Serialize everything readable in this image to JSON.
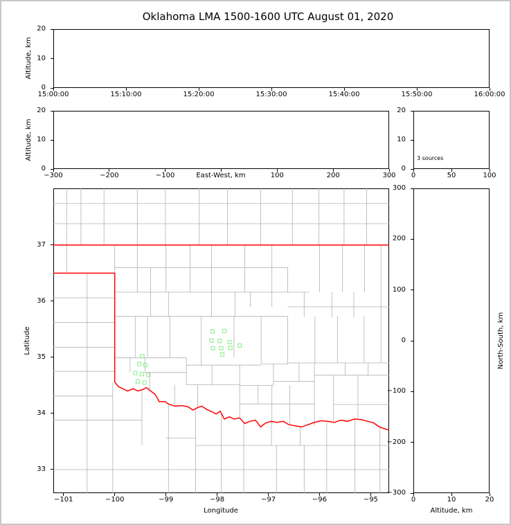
{
  "title": "Oklahoma LMA 1500-1600 UTC August 01, 2020",
  "colors": {
    "axis": "#000000",
    "county_lines": "#b0b0b0",
    "state_border": "#ff0000",
    "station_marker": "#90ee90",
    "background": "#ffffff",
    "frame": "#c8c8c8"
  },
  "panels": {
    "time_height": {
      "ylabel": "Altitude, km"
    },
    "ew_height": {
      "ylabel": "Altitude, km",
      "xlabel": "East-West, km"
    },
    "histogram": {
      "annotation": "3 sources"
    },
    "map": {
      "ylabel": "Latitude",
      "xlabel": "Longitude"
    },
    "ns_height": {
      "ylabel": "North-South, km",
      "xlabel": "Altitude, km"
    }
  },
  "chart_data": [
    {
      "id": "time_height",
      "type": "scatter",
      "ylabel": "Altitude, km",
      "xticks": [
        "15:00:00",
        "15:10:00",
        "15:20:00",
        "15:30:00",
        "15:40:00",
        "15:50:00",
        "16:00:00"
      ],
      "ylim": [
        0,
        20
      ],
      "yticks": [
        0,
        10,
        20
      ],
      "points": []
    },
    {
      "id": "ew_height",
      "type": "scatter",
      "xlabel": "East-West, km",
      "ylabel": "Altitude, km",
      "xlim": [
        -300,
        300
      ],
      "xticks": [
        -300,
        -200,
        -100,
        0,
        100,
        200,
        300
      ],
      "xtick_labels": [
        "−300",
        "−200",
        "−100",
        "",
        "100",
        "200",
        "300"
      ],
      "ylim": [
        0,
        20
      ],
      "yticks": [
        0,
        10,
        20
      ],
      "points": []
    },
    {
      "id": "alt_hist",
      "type": "bar",
      "xlim": [
        0,
        100
      ],
      "xticks": [
        0,
        50,
        100
      ],
      "ylim": [
        0,
        20
      ],
      "yticks": [
        0,
        10,
        20
      ],
      "annotation": "3 sources",
      "values": []
    },
    {
      "id": "plan_view",
      "type": "scatter",
      "xlabel": "Longitude",
      "ylabel": "Latitude",
      "xlim": [
        -101.2,
        -94.64
      ],
      "ylim": [
        32.58,
        38.01
      ],
      "xticks": [
        -101,
        -100,
        -99,
        -98,
        -97,
        -96,
        -95
      ],
      "yticks": [
        33,
        34,
        35,
        36,
        37
      ],
      "stations": [
        [
          -99.46,
          35.02
        ],
        [
          -99.52,
          34.88
        ],
        [
          -99.4,
          34.86
        ],
        [
          -99.6,
          34.72
        ],
        [
          -99.47,
          34.7
        ],
        [
          -99.34,
          34.69
        ],
        [
          -99.55,
          34.57
        ],
        [
          -99.42,
          34.55
        ],
        [
          -98.09,
          35.46
        ],
        [
          -97.86,
          35.47
        ],
        [
          -98.11,
          35.3
        ],
        [
          -97.95,
          35.29
        ],
        [
          -97.76,
          35.27
        ],
        [
          -98.08,
          35.16
        ],
        [
          -97.92,
          35.16
        ],
        [
          -97.74,
          35.17
        ],
        [
          -97.56,
          35.21
        ],
        [
          -97.9,
          35.05
        ]
      ],
      "state_border": [
        [
          [
            -101.2,
            37.0
          ],
          [
            -94.64,
            37.0
          ]
        ],
        [
          [
            -101.2,
            36.5
          ],
          [
            -100.0,
            36.5
          ],
          [
            -100.0,
            34.56
          ],
          [
            -99.93,
            34.48
          ],
          [
            -99.84,
            34.44
          ],
          [
            -99.75,
            34.4
          ],
          [
            -99.64,
            34.44
          ],
          [
            -99.55,
            34.4
          ],
          [
            -99.47,
            34.42
          ],
          [
            -99.38,
            34.46
          ],
          [
            -99.3,
            34.4
          ],
          [
            -99.21,
            34.34
          ],
          [
            -99.13,
            34.21
          ],
          [
            -99.02,
            34.21
          ],
          [
            -98.95,
            34.17
          ],
          [
            -98.83,
            34.13
          ],
          [
            -98.69,
            34.14
          ],
          [
            -98.57,
            34.12
          ],
          [
            -98.47,
            34.06
          ],
          [
            -98.39,
            34.1
          ],
          [
            -98.3,
            34.13
          ],
          [
            -98.2,
            34.07
          ],
          [
            -98.1,
            34.03
          ],
          [
            -98.02,
            33.99
          ],
          [
            -97.94,
            34.04
          ],
          [
            -97.86,
            33.9
          ],
          [
            -97.76,
            33.94
          ],
          [
            -97.67,
            33.9
          ],
          [
            -97.56,
            33.92
          ],
          [
            -97.46,
            33.82
          ],
          [
            -97.36,
            33.86
          ],
          [
            -97.25,
            33.88
          ],
          [
            -97.15,
            33.76
          ],
          [
            -97.05,
            33.83
          ],
          [
            -96.94,
            33.86
          ],
          [
            -96.83,
            33.84
          ],
          [
            -96.71,
            33.86
          ],
          [
            -96.6,
            33.8
          ],
          [
            -96.48,
            33.78
          ],
          [
            -96.35,
            33.76
          ],
          [
            -96.22,
            33.8
          ],
          [
            -96.1,
            33.84
          ],
          [
            -95.97,
            33.87
          ],
          [
            -95.84,
            33.86
          ],
          [
            -95.71,
            33.84
          ],
          [
            -95.58,
            33.88
          ],
          [
            -95.45,
            33.86
          ],
          [
            -95.32,
            33.9
          ],
          [
            -95.19,
            33.89
          ],
          [
            -95.06,
            33.86
          ],
          [
            -94.94,
            33.83
          ],
          [
            -94.83,
            33.76
          ],
          [
            -94.64,
            33.7
          ]
        ]
      ],
      "county_lines": [
        [
          -101.2,
          37.38,
          -94.64,
          37.38
        ],
        [
          -101.2,
          37.74,
          -94.64,
          37.74
        ],
        [
          -100.94,
          37.0,
          -100.94,
          38.01
        ],
        [
          -100.66,
          37.0,
          -100.66,
          38.01
        ],
        [
          -100.21,
          37.0,
          -100.21,
          38.01
        ],
        [
          -99.56,
          37.0,
          -99.56,
          38.01
        ],
        [
          -99.01,
          37.0,
          -99.01,
          38.01
        ],
        [
          -98.35,
          37.0,
          -98.35,
          38.01
        ],
        [
          -97.8,
          37.0,
          -97.8,
          38.01
        ],
        [
          -97.15,
          37.0,
          -97.15,
          38.01
        ],
        [
          -96.53,
          37.0,
          -96.53,
          38.01
        ],
        [
          -96.01,
          37.0,
          -96.01,
          38.01
        ],
        [
          -95.52,
          37.0,
          -95.52,
          38.01
        ],
        [
          -95.08,
          37.0,
          -95.08,
          38.01
        ],
        [
          -100.54,
          36.5,
          -100.54,
          32.58
        ],
        [
          -101.2,
          36.06,
          -100.0,
          36.06
        ],
        [
          -101.2,
          35.62,
          -100.0,
          35.62
        ],
        [
          -101.2,
          35.18,
          -100.0,
          35.18
        ],
        [
          -101.2,
          34.75,
          -100.0,
          34.75
        ],
        [
          -101.2,
          34.31,
          -100.04,
          34.31
        ],
        [
          -101.2,
          33.88,
          -99.47,
          33.88
        ],
        [
          -100.04,
          34.56,
          -100.04,
          32.58
        ],
        [
          -101.2,
          33.0,
          -94.64,
          33.0
        ],
        [
          -99.47,
          34.4,
          -99.47,
          33.44
        ],
        [
          -98.95,
          34.18,
          -98.95,
          32.58
        ],
        [
          -98.42,
          34.07,
          -98.42,
          32.58
        ],
        [
          -97.92,
          34.0,
          -97.92,
          32.58
        ],
        [
          -97.48,
          33.84,
          -97.48,
          32.58
        ],
        [
          -96.94,
          33.85,
          -96.94,
          33.43
        ],
        [
          -96.84,
          33.43,
          -96.84,
          32.58
        ],
        [
          -96.38,
          33.77,
          -96.38,
          33.43
        ],
        [
          -96.3,
          33.43,
          -96.3,
          32.58
        ],
        [
          -95.86,
          33.86,
          -95.86,
          32.58
        ],
        [
          -95.31,
          33.89,
          -95.31,
          32.58
        ],
        [
          -94.82,
          33.75,
          -94.82,
          32.58
        ],
        [
          -99.0,
          33.56,
          -98.42,
          33.56
        ],
        [
          -98.42,
          33.43,
          -94.64,
          33.43
        ],
        [
          -100.94,
          36.5,
          -100.94,
          37.0
        ],
        [
          -100.0,
          36.5,
          -100.0,
          37.0
        ],
        [
          -100.0,
          36.6,
          -96.62,
          36.6
        ],
        [
          -100.0,
          36.16,
          -96.2,
          36.16
        ],
        [
          -99.56,
          36.16,
          -99.56,
          37.0
        ],
        [
          -99.0,
          36.16,
          -99.0,
          37.0
        ],
        [
          -98.53,
          36.16,
          -98.53,
          37.0
        ],
        [
          -98.11,
          35.72,
          -98.11,
          37.0
        ],
        [
          -97.46,
          36.16,
          -97.46,
          37.0
        ],
        [
          -96.93,
          35.9,
          -96.93,
          37.0
        ],
        [
          -96.62,
          36.16,
          -96.62,
          36.6
        ],
        [
          -96.0,
          36.16,
          -96.0,
          37.0
        ],
        [
          -95.55,
          36.16,
          -95.55,
          37.0
        ],
        [
          -95.12,
          36.16,
          -95.12,
          37.0
        ],
        [
          -94.8,
          34.9,
          -94.8,
          37.0
        ],
        [
          -99.3,
          35.72,
          -99.3,
          36.6
        ],
        [
          -98.95,
          35.72,
          -98.95,
          36.16
        ],
        [
          -97.65,
          35.72,
          -97.65,
          36.16
        ],
        [
          -97.35,
          35.9,
          -97.35,
          36.16
        ],
        [
          -96.3,
          35.72,
          -96.3,
          36.16
        ],
        [
          -95.76,
          35.72,
          -95.76,
          36.16
        ],
        [
          -95.33,
          35.72,
          -95.33,
          36.16
        ],
        [
          -100.0,
          35.73,
          -96.62,
          35.73
        ],
        [
          -96.62,
          35.9,
          -94.64,
          35.9
        ],
        [
          -99.6,
          35.0,
          -99.6,
          35.73
        ],
        [
          -99.36,
          35.0,
          -99.36,
          35.73
        ],
        [
          -98.92,
          35.0,
          -98.92,
          35.73
        ],
        [
          -98.31,
          34.86,
          -98.31,
          35.73
        ],
        [
          -97.67,
          35.0,
          -97.67,
          35.73
        ],
        [
          -97.14,
          34.88,
          -97.14,
          35.73
        ],
        [
          -96.62,
          34.88,
          -96.62,
          35.73
        ],
        [
          -96.09,
          34.9,
          -96.09,
          35.73
        ],
        [
          -95.65,
          34.9,
          -95.65,
          35.73
        ],
        [
          -95.13,
          34.9,
          -95.13,
          35.73
        ],
        [
          -100.0,
          34.99,
          -98.6,
          34.99
        ],
        [
          -98.6,
          34.86,
          -97.14,
          34.86
        ],
        [
          -97.14,
          34.88,
          -96.62,
          34.88
        ],
        [
          -96.62,
          34.9,
          -94.64,
          34.9
        ],
        [
          -99.41,
          34.73,
          -99.41,
          35.0
        ],
        [
          -99.7,
          34.73,
          -99.7,
          35.0
        ],
        [
          -99.41,
          34.73,
          -98.6,
          34.73
        ],
        [
          -99.32,
          34.42,
          -99.32,
          34.73
        ],
        [
          -98.6,
          34.51,
          -98.6,
          34.99
        ],
        [
          -98.6,
          34.51,
          -97.56,
          34.51
        ],
        [
          -98.1,
          34.51,
          -98.1,
          34.86
        ],
        [
          -97.56,
          34.5,
          -97.56,
          34.86
        ],
        [
          -97.56,
          34.5,
          -96.9,
          34.5
        ],
        [
          -96.9,
          34.5,
          -96.9,
          34.88
        ],
        [
          -96.9,
          34.57,
          -96.1,
          34.57
        ],
        [
          -96.4,
          34.57,
          -96.4,
          34.9
        ],
        [
          -96.1,
          34.57,
          -96.1,
          34.9
        ],
        [
          -96.1,
          34.68,
          -94.64,
          34.68
        ],
        [
          -95.5,
          34.68,
          -95.5,
          34.9
        ],
        [
          -95.05,
          34.68,
          -95.05,
          34.9
        ],
        [
          -98.83,
          34.14,
          -98.83,
          34.51
        ],
        [
          -98.38,
          34.09,
          -98.38,
          34.51
        ],
        [
          -97.56,
          33.93,
          -97.56,
          34.5
        ],
        [
          -96.93,
          33.83,
          -96.93,
          34.5
        ],
        [
          -96.58,
          33.81,
          -96.58,
          34.5
        ],
        [
          -96.1,
          33.78,
          -96.1,
          34.57
        ],
        [
          -95.73,
          33.86,
          -95.73,
          34.68
        ],
        [
          -95.25,
          33.91,
          -95.25,
          34.68
        ],
        [
          -97.56,
          34.17,
          -96.1,
          34.17
        ],
        [
          -95.73,
          34.16,
          -94.64,
          34.16
        ],
        [
          -97.2,
          34.17,
          -97.2,
          34.5
        ]
      ]
    },
    {
      "id": "ns_height",
      "type": "scatter",
      "xlabel": "Altitude, km",
      "ylabel": "North-South, km",
      "xlim": [
        0,
        20
      ],
      "xticks": [
        0,
        10,
        20
      ],
      "ylim": [
        -300,
        300
      ],
      "yticks": [
        -300,
        -200,
        -100,
        0,
        100,
        200,
        300
      ],
      "points": []
    }
  ]
}
